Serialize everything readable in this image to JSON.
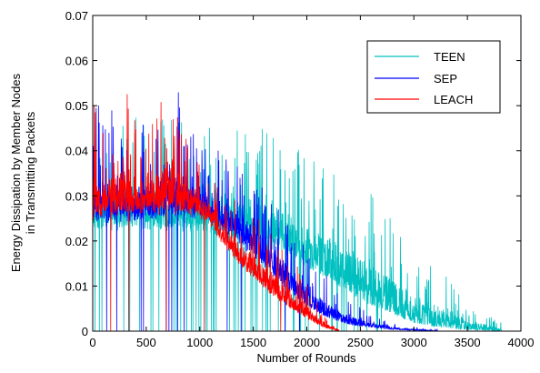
{
  "chart_data": {
    "type": "line",
    "title": "",
    "xlabel": "Number of Rounds",
    "ylabel_lines": [
      "Energy Dissipation by Member Nodes",
      "in Transmitting Packets"
    ],
    "xlim": [
      0,
      4000
    ],
    "ylim": [
      0,
      0.07
    ],
    "x_ticks": [
      0,
      500,
      1000,
      1500,
      2000,
      2500,
      3000,
      3500,
      4000
    ],
    "y_ticks": [
      0,
      0.01,
      0.02,
      0.03,
      0.04,
      0.05,
      0.06,
      0.07
    ],
    "x_tick_labels": [
      "0",
      "500",
      "1000",
      "1500",
      "2000",
      "2500",
      "3000",
      "3500",
      "4000"
    ],
    "y_tick_labels": [
      "0",
      "0.01",
      "0.02",
      "0.03",
      "0.04",
      "0.05",
      "0.06",
      "0.07"
    ],
    "grid": false,
    "legend_position": "top-right",
    "series": [
      {
        "name": "TEEN",
        "color": "#00c0c0",
        "envelope": {
          "x": [
            0,
            100,
            300,
            500,
            700,
            900,
            1000,
            1100,
            1200,
            1400,
            1600,
            1800,
            2000,
            2200,
            2400,
            2600,
            2800,
            3000,
            3200,
            3400,
            3600,
            3800
          ],
          "y_upper": [
            0.036,
            0.048,
            0.048,
            0.047,
            0.047,
            0.047,
            0.046,
            0.045,
            0.046,
            0.046,
            0.045,
            0.042,
            0.04,
            0.038,
            0.035,
            0.031,
            0.026,
            0.02,
            0.015,
            0.01,
            0.005,
            0.002
          ],
          "y_typical": [
            0.024,
            0.024,
            0.024,
            0.024,
            0.024,
            0.024,
            0.024,
            0.023,
            0.022,
            0.021,
            0.02,
            0.018,
            0.015,
            0.012,
            0.009,
            0.006,
            0.004,
            0.002,
            0.001,
            0.0005,
            0.0002,
            0.0
          ]
        },
        "x_end": 3820
      },
      {
        "name": "SEP",
        "color": "#0000ff",
        "envelope": {
          "x": [
            0,
            200,
            400,
            600,
            700,
            900,
            1000,
            1100,
            1200,
            1400,
            1600,
            1800,
            2000,
            2200,
            2400,
            2600,
            2800,
            3000,
            3200
          ],
          "y_upper": [
            0.051,
            0.049,
            0.046,
            0.047,
            0.062,
            0.045,
            0.044,
            0.043,
            0.04,
            0.039,
            0.032,
            0.026,
            0.018,
            0.012,
            0.007,
            0.004,
            0.002,
            0.001,
            0.0005
          ],
          "y_typical": [
            0.026,
            0.026,
            0.026,
            0.027,
            0.027,
            0.027,
            0.027,
            0.026,
            0.024,
            0.02,
            0.015,
            0.01,
            0.006,
            0.003,
            0.0015,
            0.0008,
            0.0004,
            0.0002,
            0.0
          ]
        },
        "x_end": 3220
      },
      {
        "name": "LEACH",
        "color": "#ff0000",
        "envelope": {
          "x": [
            0,
            100,
            300,
            500,
            700,
            900,
            1000,
            1100,
            1200,
            1400,
            1600,
            1800,
            2000,
            2100,
            2200,
            2300
          ],
          "y_upper": [
            0.053,
            0.044,
            0.058,
            0.042,
            0.058,
            0.042,
            0.038,
            0.036,
            0.033,
            0.028,
            0.024,
            0.019,
            0.011,
            0.006,
            0.003,
            0.001
          ],
          "y_typical": [
            0.026,
            0.027,
            0.028,
            0.028,
            0.028,
            0.028,
            0.027,
            0.025,
            0.021,
            0.015,
            0.01,
            0.006,
            0.003,
            0.0015,
            0.0006,
            0.0
          ]
        },
        "x_end": 2300
      }
    ]
  }
}
